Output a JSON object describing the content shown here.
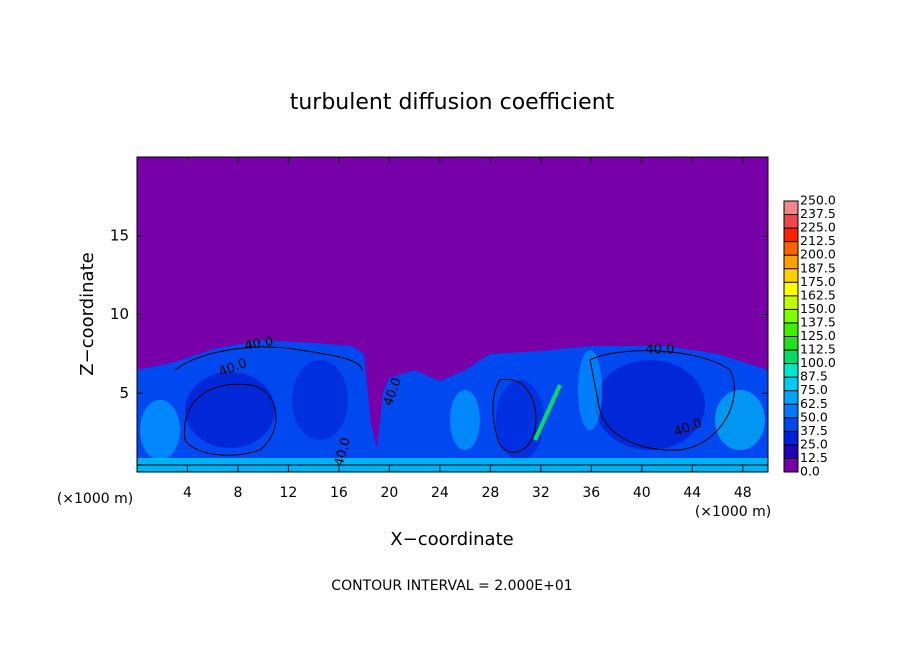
{
  "chart_data": {
    "type": "contour",
    "title": "turbulent diffusion coefficient",
    "xlabel": "X−coordinate",
    "ylabel": "Z−coordinate",
    "y_unit_label": "(×1000 m)",
    "x_unit_label": "(×1000 m)",
    "xlim": [
      0,
      50
    ],
    "ylim": [
      0,
      20
    ],
    "xticks": [
      4,
      8,
      12,
      16,
      20,
      24,
      28,
      32,
      36,
      40,
      44,
      48
    ],
    "yticks": [
      5,
      10,
      15
    ],
    "colorbar": {
      "levels": [
        {
          "value": 0,
          "label": "0.0"
        },
        {
          "value": 12.5,
          "label": "12.5"
        },
        {
          "value": 25,
          "label": "25.0"
        },
        {
          "value": 37.5,
          "label": "37.5"
        },
        {
          "value": 50,
          "label": "50.0"
        },
        {
          "value": 62.5,
          "label": "62.5"
        },
        {
          "value": 75,
          "label": "75.0"
        },
        {
          "value": 87.5,
          "label": "87.5"
        },
        {
          "value": 100,
          "label": "100.0"
        },
        {
          "value": 112.5,
          "label": "112.5"
        },
        {
          "value": 125,
          "label": "125.0"
        },
        {
          "value": 137.5,
          "label": "137.5"
        },
        {
          "value": 150,
          "label": "150.0"
        },
        {
          "value": 162.5,
          "label": "162.5"
        },
        {
          "value": 175,
          "label": "175.0"
        },
        {
          "value": 187.5,
          "label": "187.5"
        },
        {
          "value": 200,
          "label": "200.0"
        },
        {
          "value": 212.5,
          "label": "212.5"
        },
        {
          "value": 225,
          "label": "225.0"
        },
        {
          "value": 237.5,
          "label": "237.5"
        },
        {
          "value": 250,
          "label": "250.0"
        }
      ],
      "colors": [
        "#7800a8",
        "#2200b8",
        "#0020dc",
        "#0048f0",
        "#0078ff",
        "#00a4ff",
        "#00ccf4",
        "#00e8c8",
        "#00dc64",
        "#20e020",
        "#40f000",
        "#80ff00",
        "#c0ff00",
        "#ffff00",
        "#ffd000",
        "#ffa000",
        "#ff6000",
        "#ff2000",
        "#f04848",
        "#f08888"
      ]
    },
    "contour_labels": [
      "40.0",
      "40.0",
      "40.0",
      "40.0",
      "40.0",
      "40.0"
    ],
    "footnote": "CONTOUR INTERVAL = 2.000E+01"
  }
}
